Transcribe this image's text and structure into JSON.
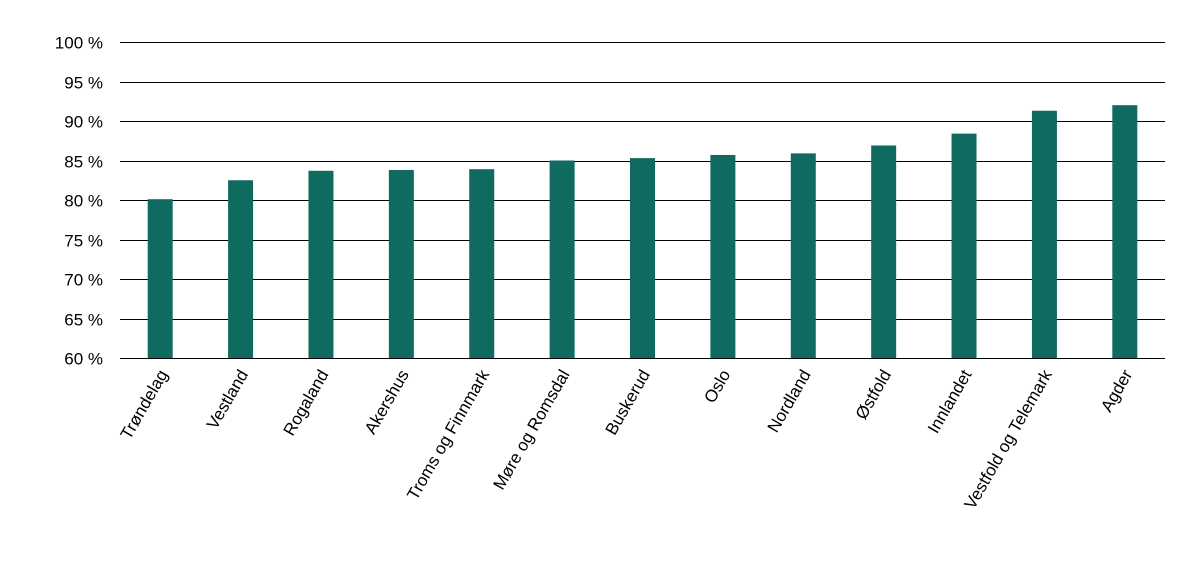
{
  "chart_data": {
    "type": "bar",
    "title": "",
    "xlabel": "",
    "ylabel": "",
    "ylim": [
      60,
      100
    ],
    "yticks": [
      60,
      65,
      70,
      75,
      80,
      85,
      90,
      95,
      100
    ],
    "ytick_suffix": " %",
    "grid": true,
    "legend": "none",
    "bar_color": "#0f6b5f",
    "categories": [
      "Trøndelag",
      "Vestland",
      "Rogaland",
      "Akershus",
      "Troms og Finnmark",
      "Møre og Romsdal",
      "Buskerud",
      "Oslo",
      "Nordland",
      "Østfold",
      "Innlandet",
      "Vestfold og Telemark",
      "Agder"
    ],
    "values": [
      80.1,
      82.5,
      83.7,
      83.8,
      83.9,
      85.0,
      85.3,
      85.7,
      85.9,
      86.9,
      88.4,
      91.3,
      92.0
    ]
  }
}
